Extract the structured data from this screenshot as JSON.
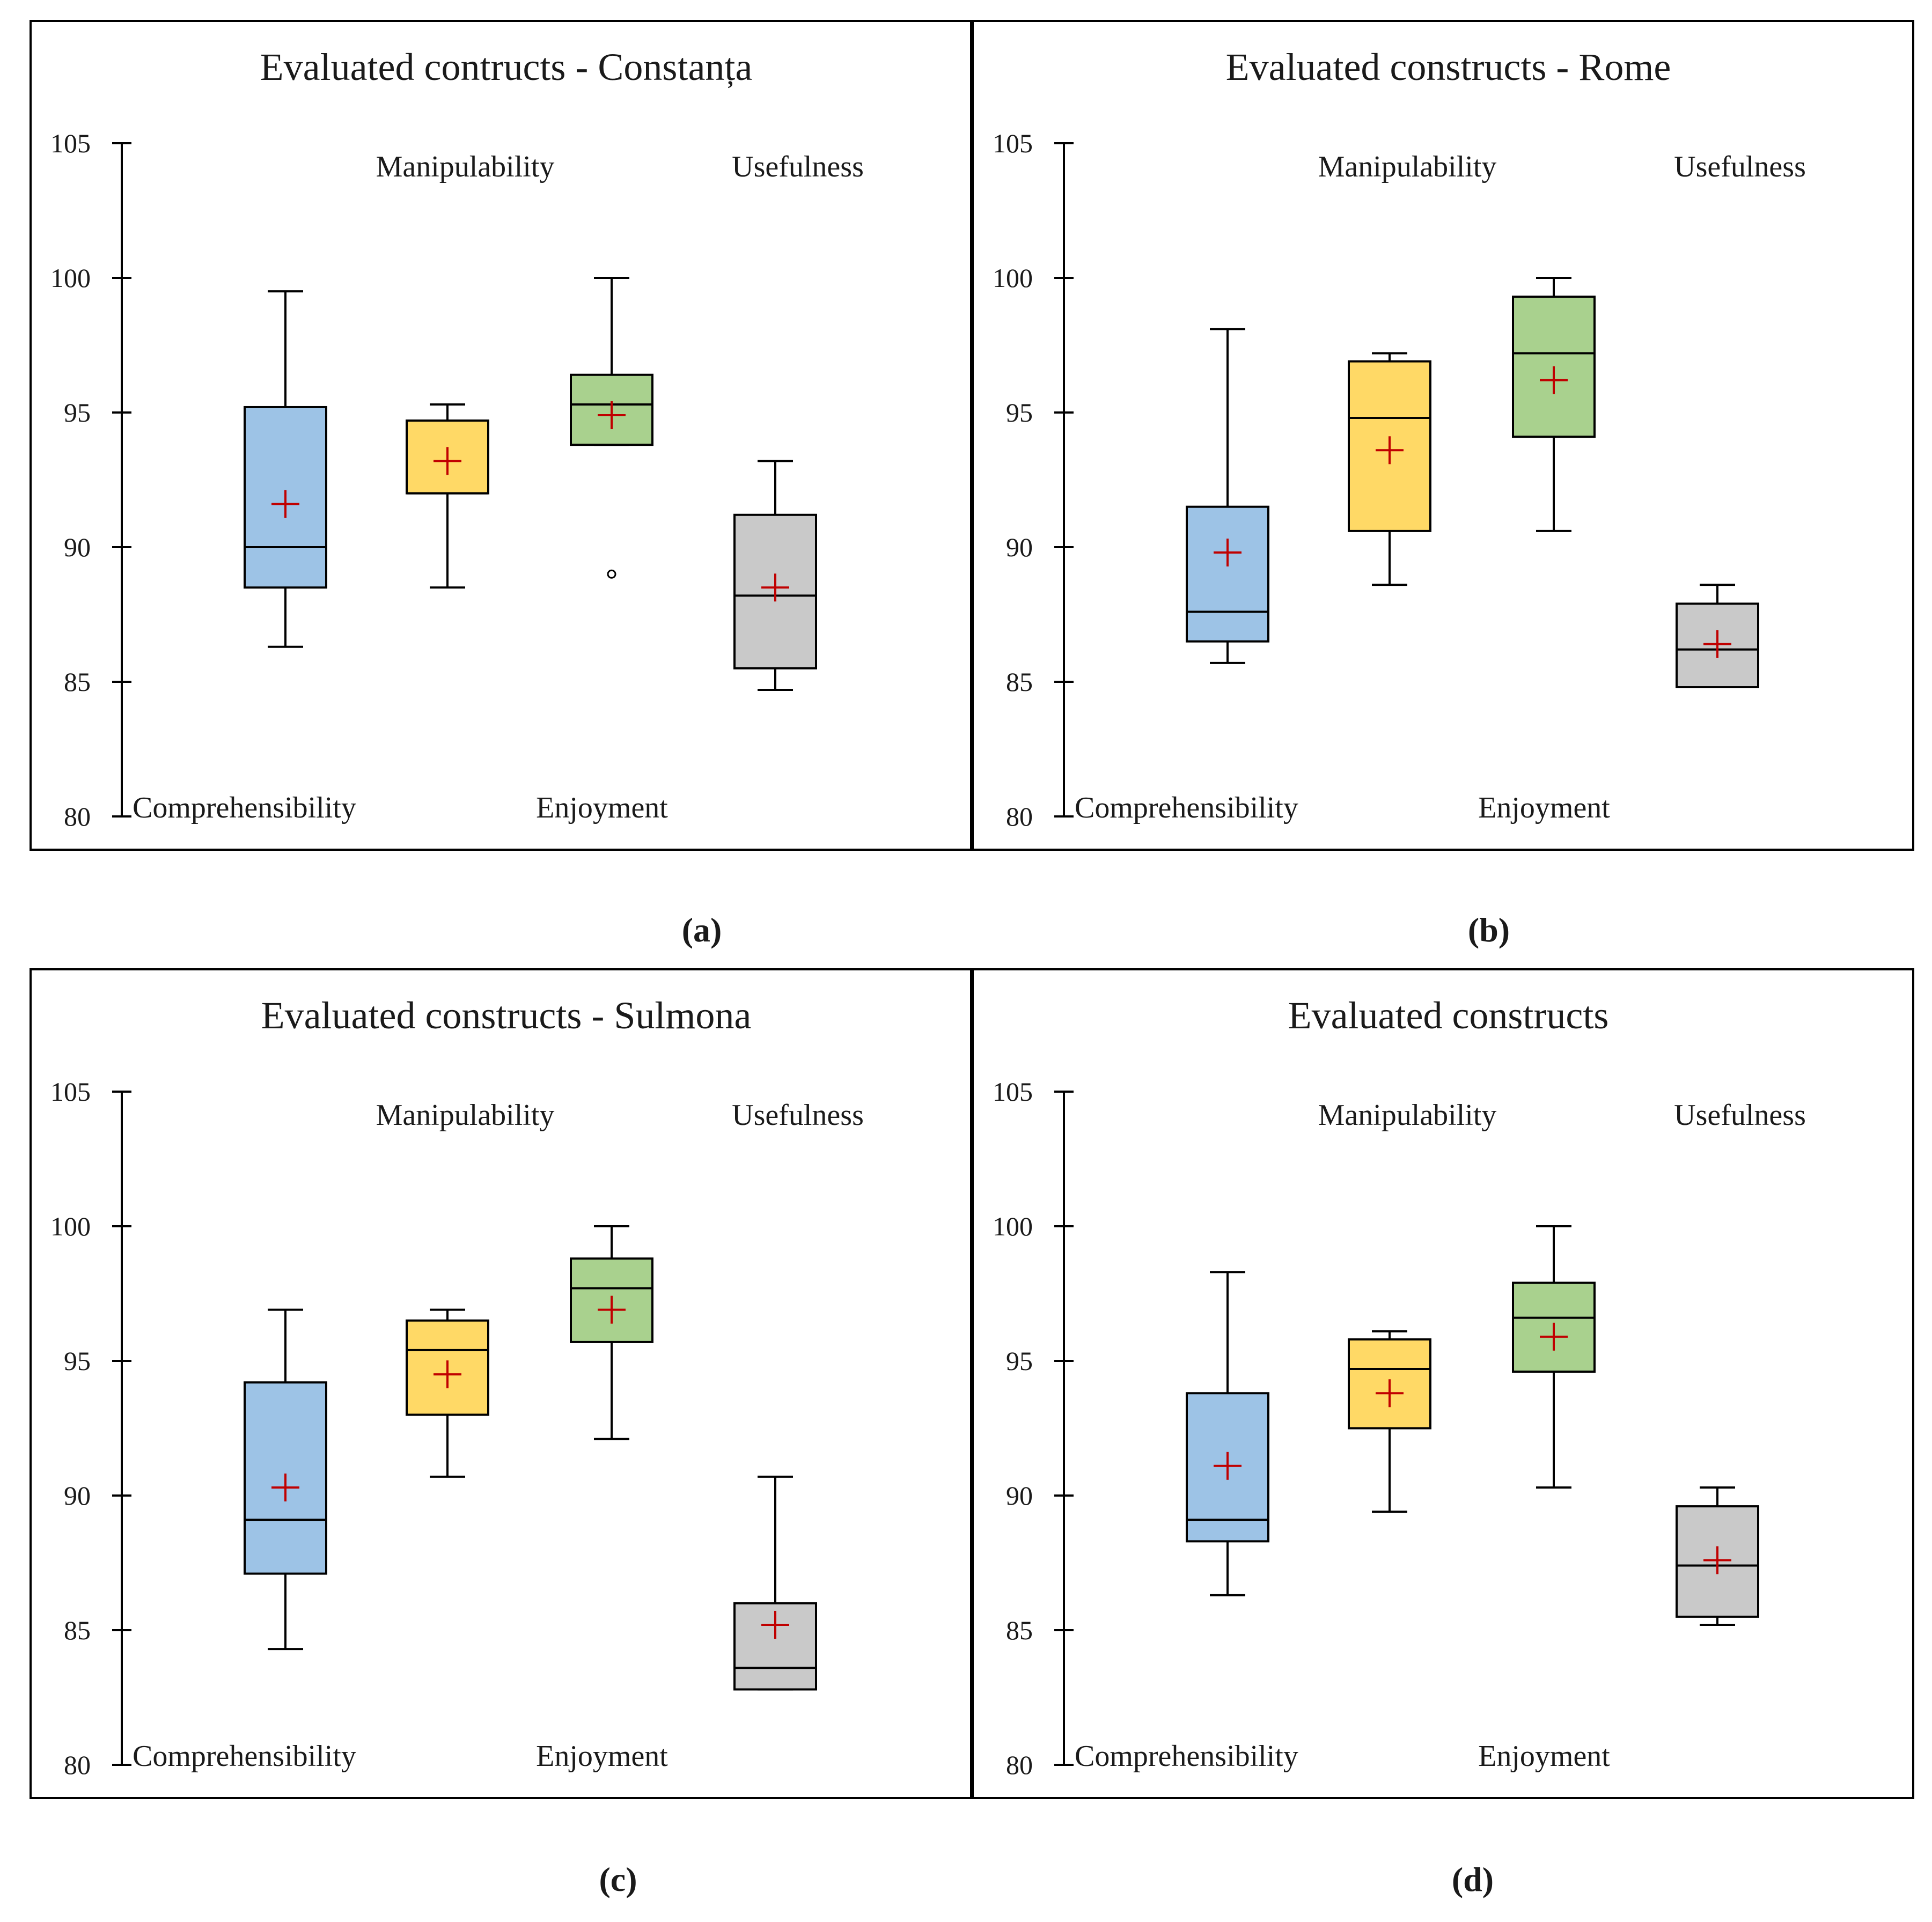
{
  "captions": [
    "(a)",
    "(b)",
    "(c)",
    "(d)"
  ],
  "colors": {
    "Comprehensibility": "#9dc3e6",
    "Manipulability": "#ffd966",
    "Enjoyment": "#a9d18e",
    "Usefulness": "#c9c9c9",
    "mean_marker": "#c00000",
    "axis": "#000000"
  },
  "chart_data": [
    {
      "type": "box",
      "title": "Evaluated contructs - Constanța",
      "ylim": [
        80,
        105
      ],
      "yticks": [
        "80",
        "85",
        "90",
        "95",
        "100",
        "105"
      ],
      "categories": [
        "Comprehensibility",
        "Manipulability",
        "Enjoyment",
        "Usefulness"
      ],
      "label_rows": [
        "bottom",
        "top",
        "bottom",
        "top"
      ],
      "series": [
        {
          "name": "Comprehensibility",
          "min": 86.3,
          "q1": 88.5,
          "median": 90.0,
          "q3": 95.2,
          "max": 99.5,
          "mean": 91.6,
          "outliers": []
        },
        {
          "name": "Manipulability",
          "min": 88.5,
          "q1": 92.0,
          "median": 92.0,
          "q3": 94.7,
          "max": 95.3,
          "mean": 93.2,
          "outliers": []
        },
        {
          "name": "Enjoyment",
          "min": 93.8,
          "q1": 93.8,
          "median": 95.3,
          "q3": 96.4,
          "max": 100.0,
          "mean": 94.9,
          "outliers": [
            89.0
          ]
        },
        {
          "name": "Usefulness",
          "min": 84.7,
          "q1": 85.5,
          "median": 88.2,
          "q3": 91.2,
          "max": 93.2,
          "mean": 88.5,
          "outliers": []
        }
      ]
    },
    {
      "type": "box",
      "title": "Evaluated constructs - Rome",
      "ylim": [
        80,
        105
      ],
      "yticks": [
        "80",
        "85",
        "90",
        "95",
        "100",
        "105"
      ],
      "categories": [
        "Comprehensibility",
        "Manipulability",
        "Enjoyment",
        "Usefulness"
      ],
      "label_rows": [
        "bottom",
        "top",
        "bottom",
        "top"
      ],
      "series": [
        {
          "name": "Comprehensibility",
          "min": 85.7,
          "q1": 86.5,
          "median": 87.6,
          "q3": 91.5,
          "max": 98.1,
          "mean": 89.8,
          "outliers": []
        },
        {
          "name": "Manipulability",
          "min": 88.6,
          "q1": 90.6,
          "median": 94.8,
          "q3": 96.9,
          "max": 97.2,
          "mean": 93.6,
          "outliers": []
        },
        {
          "name": "Enjoyment",
          "min": 90.6,
          "q1": 94.1,
          "median": 97.2,
          "q3": 99.3,
          "max": 100.0,
          "mean": 96.2,
          "outliers": []
        },
        {
          "name": "Usefulness",
          "min": 84.8,
          "q1": 84.8,
          "median": 86.2,
          "q3": 87.9,
          "max": 88.6,
          "mean": 86.4,
          "outliers": []
        }
      ]
    },
    {
      "type": "box",
      "title": "Evaluated constructs - Sulmona",
      "ylim": [
        80,
        105
      ],
      "yticks": [
        "80",
        "85",
        "90",
        "95",
        "100",
        "105"
      ],
      "categories": [
        "Comprehensibility",
        "Manipulability",
        "Enjoyment",
        "Usefulness"
      ],
      "label_rows": [
        "bottom",
        "top",
        "bottom",
        "top"
      ],
      "series": [
        {
          "name": "Comprehensibility",
          "min": 84.3,
          "q1": 87.1,
          "median": 89.1,
          "q3": 94.2,
          "max": 96.9,
          "mean": 90.3,
          "outliers": []
        },
        {
          "name": "Manipulability",
          "min": 90.7,
          "q1": 93.0,
          "median": 95.4,
          "q3": 96.5,
          "max": 96.9,
          "mean": 94.5,
          "outliers": []
        },
        {
          "name": "Enjoyment",
          "min": 92.1,
          "q1": 95.7,
          "median": 97.7,
          "q3": 98.8,
          "max": 100.0,
          "mean": 96.9,
          "outliers": []
        },
        {
          "name": "Usefulness",
          "min": 82.8,
          "q1": 82.8,
          "median": 83.6,
          "q3": 86.0,
          "max": 90.7,
          "mean": 85.2,
          "outliers": []
        }
      ]
    },
    {
      "type": "box",
      "title": "Evaluated constructs",
      "ylim": [
        80,
        105
      ],
      "yticks": [
        "80",
        "85",
        "90",
        "95",
        "100",
        "105"
      ],
      "categories": [
        "Comprehensibility",
        "Manipulability",
        "Enjoyment",
        "Usefulness"
      ],
      "label_rows": [
        "bottom",
        "top",
        "bottom",
        "top"
      ],
      "series": [
        {
          "name": "Comprehensibility",
          "min": 86.3,
          "q1": 88.3,
          "median": 89.1,
          "q3": 93.8,
          "max": 98.3,
          "mean": 91.1,
          "outliers": []
        },
        {
          "name": "Manipulability",
          "min": 89.4,
          "q1": 92.5,
          "median": 94.7,
          "q3": 95.8,
          "max": 96.1,
          "mean": 93.8,
          "outliers": []
        },
        {
          "name": "Enjoyment",
          "min": 90.3,
          "q1": 94.6,
          "median": 96.6,
          "q3": 97.9,
          "max": 100.0,
          "mean": 95.9,
          "outliers": []
        },
        {
          "name": "Usefulness",
          "min": 85.2,
          "q1": 85.5,
          "median": 87.4,
          "q3": 89.6,
          "max": 90.3,
          "mean": 87.6,
          "outliers": []
        }
      ]
    }
  ]
}
